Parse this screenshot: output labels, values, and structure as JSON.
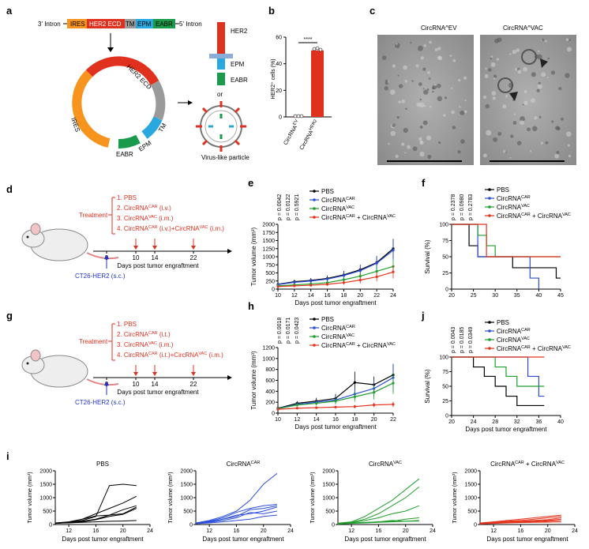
{
  "panels": {
    "a": {
      "label": "a",
      "construct": [
        "3' Intron",
        "IRES",
        "HER2 ECD",
        "TM",
        "EPM",
        "EABR",
        "5' Intron"
      ],
      "ring": [
        "HER2 ECD",
        "IRES",
        "EABR",
        "EPM",
        "TM"
      ],
      "protein": [
        "HER2",
        "EPM",
        "EABR"
      ],
      "or": "or",
      "vlp": "Virus-like particle"
    },
    "b": {
      "label": "b",
      "ylabel": "HER2⁺ cells (%)",
      "sig": "****",
      "yticks": [
        "0",
        "20",
        "40",
        "60"
      ],
      "xcats": [
        "CircRNA^EV",
        "CircRNA^HER2"
      ],
      "values": [
        0.5,
        50
      ]
    },
    "c": {
      "label": "c",
      "img1": "CircRNA^EV",
      "img2": "CircRNA^VAC",
      "scale1": "100 nm",
      "scale2": "100 nm"
    },
    "d": {
      "label": "d",
      "treatment": "Treatment",
      "items": [
        "1. PBS",
        "2. CircRNA^CAR (i.v.)",
        "3. CircRNA^VAC (i.m.)",
        "4. CircRNA^CAR (i.v.)+CircRNA^VAC (i.m.)"
      ],
      "days": [
        "0",
        "10",
        "14",
        "22"
      ],
      "axis": "Days post tumor engraftment",
      "tumor": "CT26-HER2 (s.c.)"
    },
    "g": {
      "label": "g",
      "treatment": "Treatment",
      "items": [
        "1. PBS",
        "2. CircRNA^CAR (i.t.)",
        "3. CircRNA^VAC (i.m.)",
        "4. CircRNA^CAR (i.t.)+CircRNA^VAC (i.m.)"
      ],
      "days": [
        "0",
        "10",
        "14",
        "22"
      ],
      "axis": "Days post tumor engraftment",
      "tumor": "CT26-HER2 (s.c.)"
    },
    "e": {
      "label": "e",
      "pvals": [
        "p = 0.0042",
        "p = 0.0122",
        "p = 0.5921"
      ]
    },
    "f": {
      "label": "f",
      "pvals": [
        "p = 0.2378",
        "p = 0.0980",
        "p = 0.2783"
      ]
    },
    "h": {
      "label": "h",
      "pvals": [
        "p = 0.0018",
        "p = 0.0171",
        "p = 0.0423"
      ]
    },
    "j": {
      "label": "j",
      "pvals": [
        "p = 0.0043",
        "p = 0.0185",
        "p = 0.0349"
      ]
    },
    "i": {
      "label": "i"
    }
  },
  "legend": [
    "PBS",
    "CircRNA^CAR",
    "CircRNA^VAC",
    "CircRNA^CAR + CircRNA^VAC"
  ],
  "colors": {
    "PBS": "#000000",
    "CAR": "#2a4ed8",
    "VAC": "#1f9e2c",
    "COMBO": "#e5331c"
  },
  "chart_data": [
    {
      "id": "b",
      "type": "bar",
      "categories": [
        "CircRNA^EV",
        "CircRNA^HER2"
      ],
      "values": [
        0.5,
        50
      ],
      "ylabel": "HER2⁺ cells (%)",
      "ylim": [
        0,
        60
      ]
    },
    {
      "id": "e",
      "type": "line",
      "xlabel": "Days post tumor engraftment",
      "ylabel": "Tumor volume (mm³)",
      "x": [
        10,
        12,
        14,
        16,
        18,
        20,
        22,
        24
      ],
      "xlim": [
        10,
        24
      ],
      "ylim": [
        0,
        2000
      ],
      "yticks": [
        0,
        250,
        500,
        750,
        1000,
        1250,
        1500,
        1750,
        2000
      ],
      "series": [
        {
          "name": "PBS",
          "values": [
            150,
            230,
            270,
            330,
            440,
            600,
            820,
            1250
          ],
          "err": [
            40,
            60,
            70,
            90,
            120,
            150,
            200,
            300
          ]
        },
        {
          "name": "CircRNA^CAR",
          "values": [
            140,
            210,
            250,
            310,
            420,
            570,
            800,
            1200
          ],
          "err": [
            40,
            60,
            70,
            90,
            120,
            160,
            220,
            320
          ]
        },
        {
          "name": "CircRNA^VAC",
          "values": [
            100,
            130,
            160,
            200,
            290,
            400,
            550,
            700
          ],
          "err": [
            30,
            40,
            50,
            70,
            90,
            120,
            150,
            200
          ]
        },
        {
          "name": "CircRNA^CAR + CircRNA^VAC",
          "values": [
            80,
            100,
            120,
            150,
            200,
            280,
            380,
            530
          ],
          "err": [
            20,
            30,
            40,
            50,
            70,
            100,
            140,
            200
          ]
        }
      ]
    },
    {
      "id": "f",
      "type": "line",
      "xlabel": "",
      "ylabel": "Survival (%)",
      "xlim": [
        20,
        45
      ],
      "ylim": [
        0,
        100
      ],
      "xticks": [
        20,
        25,
        30,
        35,
        40,
        45
      ],
      "yticks": [
        0,
        25,
        50,
        75,
        100
      ],
      "series": [
        {
          "name": "PBS",
          "steps": [
            [
              20,
              100
            ],
            [
              24,
              100
            ],
            [
              24,
              67
            ],
            [
              26,
              67
            ],
            [
              26,
              50
            ],
            [
              34,
              50
            ],
            [
              34,
              33
            ],
            [
              44,
              33
            ],
            [
              44,
              17
            ],
            [
              45,
              17
            ]
          ]
        },
        {
          "name": "CircRNA^CAR",
          "steps": [
            [
              20,
              100
            ],
            [
              26,
              100
            ],
            [
              26,
              50
            ],
            [
              38,
              50
            ],
            [
              38,
              17
            ],
            [
              40,
              17
            ],
            [
              40,
              0
            ]
          ]
        },
        {
          "name": "CircRNA^VAC",
          "steps": [
            [
              20,
              100
            ],
            [
              26,
              100
            ],
            [
              26,
              83
            ],
            [
              28,
              83
            ],
            [
              28,
              67
            ],
            [
              30,
              67
            ],
            [
              30,
              50
            ],
            [
              45,
              50
            ]
          ]
        },
        {
          "name": "CircRNA^CAR + CircRNA^VAC",
          "steps": [
            [
              20,
              100
            ],
            [
              28,
              100
            ],
            [
              28,
              50
            ],
            [
              45,
              50
            ]
          ]
        }
      ]
    },
    {
      "id": "h",
      "type": "line",
      "xlabel": "Days post tumor engraftment",
      "ylabel": "Tumor volume (mm³)",
      "x": [
        10,
        12,
        14,
        16,
        18,
        20,
        22
      ],
      "xlim": [
        10,
        22
      ],
      "ylim": [
        0,
        1200
      ],
      "yticks": [
        0,
        200,
        400,
        600,
        800,
        1000,
        1200
      ],
      "series": [
        {
          "name": "PBS",
          "values": [
            90,
            180,
            220,
            270,
            560,
            520,
            700
          ],
          "err": [
            20,
            40,
            60,
            80,
            200,
            150,
            200
          ]
        },
        {
          "name": "CircRNA^CAR",
          "values": [
            85,
            160,
            200,
            240,
            350,
            450,
            650
          ],
          "err": [
            20,
            30,
            50,
            70,
            100,
            150,
            250
          ]
        },
        {
          "name": "CircRNA^VAC",
          "values": [
            80,
            150,
            180,
            220,
            300,
            380,
            550
          ],
          "err": [
            20,
            30,
            40,
            60,
            90,
            130,
            200
          ]
        },
        {
          "name": "CircRNA^CAR + CircRNA^VAC",
          "values": [
            70,
            90,
            100,
            110,
            120,
            150,
            160
          ],
          "err": [
            10,
            15,
            20,
            25,
            30,
            40,
            50
          ]
        }
      ]
    },
    {
      "id": "j",
      "type": "line",
      "xlabel": "Days post tumor engraftment",
      "ylabel": "Survival (%)",
      "xlim": [
        20,
        40
      ],
      "ylim": [
        0,
        100
      ],
      "xticks": [
        20,
        24,
        28,
        32,
        36,
        40
      ],
      "yticks": [
        0,
        25,
        50,
        75,
        100
      ],
      "series": [
        {
          "name": "PBS",
          "steps": [
            [
              20,
              100
            ],
            [
              24,
              100
            ],
            [
              24,
              83
            ],
            [
              26,
              83
            ],
            [
              26,
              67
            ],
            [
              28,
              67
            ],
            [
              28,
              50
            ],
            [
              30,
              50
            ],
            [
              30,
              33
            ],
            [
              32,
              33
            ],
            [
              32,
              17
            ],
            [
              37,
              17
            ]
          ]
        },
        {
          "name": "CircRNA^CAR",
          "steps": [
            [
              20,
              100
            ],
            [
              34,
              100
            ],
            [
              34,
              67
            ],
            [
              36,
              67
            ],
            [
              36,
              33
            ],
            [
              37,
              33
            ]
          ]
        },
        {
          "name": "CircRNA^VAC",
          "steps": [
            [
              20,
              100
            ],
            [
              28,
              100
            ],
            [
              28,
              83
            ],
            [
              30,
              83
            ],
            [
              30,
              67
            ],
            [
              32,
              67
            ],
            [
              32,
              50
            ],
            [
              37,
              50
            ]
          ]
        },
        {
          "name": "CircRNA^CAR + CircRNA^VAC",
          "steps": [
            [
              20,
              100
            ],
            [
              37,
              100
            ]
          ]
        }
      ]
    },
    {
      "id": "i",
      "type": "line",
      "xlabel": "Days post tumor engraftment",
      "ylabel": "Tumor volume (mm³)",
      "xticks": [
        12,
        16,
        20,
        24
      ],
      "yticks": [
        0,
        500,
        1000,
        1500,
        2000
      ],
      "xlim": [
        10,
        24
      ],
      "ylim": [
        0,
        2000
      ],
      "panels": [
        {
          "title": "PBS",
          "x": [
            10,
            12,
            14,
            16,
            18,
            20,
            22
          ],
          "lines": [
            [
              50,
              80,
              150,
              300,
              1450,
              1500,
              1450
            ],
            [
              60,
              100,
              200,
              400,
              600,
              800,
              1050
            ],
            [
              50,
              90,
              200,
              320,
              350,
              550,
              700
            ],
            [
              40,
              70,
              120,
              200,
              350,
              400,
              650
            ],
            [
              40,
              80,
              100,
              180,
              300,
              380,
              600
            ],
            [
              50,
              60,
              80,
              100,
              120,
              130,
              150
            ]
          ]
        },
        {
          "title": "CircRNA^CAR",
          "x": [
            10,
            12,
            14,
            16,
            18,
            20,
            22
          ],
          "lines": [
            [
              60,
              150,
              300,
              500,
              900,
              1500,
              1900
            ],
            [
              50,
              120,
              250,
              450,
              600,
              700,
              750
            ],
            [
              40,
              100,
              200,
              300,
              550,
              600,
              700
            ],
            [
              50,
              100,
              200,
              350,
              400,
              500,
              650
            ],
            [
              40,
              80,
              150,
              250,
              450,
              400,
              500
            ],
            [
              30,
              60,
              100,
              150,
              200,
              300,
              350
            ]
          ]
        },
        {
          "title": "CircRNA^VAC",
          "x": [
            10,
            12,
            14,
            16,
            18,
            20,
            22
          ],
          "lines": [
            [
              50,
              100,
              300,
              600,
              900,
              1300,
              1700
            ],
            [
              40,
              80,
              200,
              400,
              700,
              1000,
              1400
            ],
            [
              30,
              70,
              150,
              250,
              400,
              500,
              700
            ],
            [
              40,
              60,
              80,
              100,
              120,
              200,
              250
            ],
            [
              30,
              50,
              70,
              100,
              150,
              120,
              150
            ],
            [
              20,
              40,
              60,
              80,
              100,
              120,
              130
            ]
          ]
        },
        {
          "title": "CircRNA^CAR + CircRNA^VAC",
          "x": [
            10,
            12,
            14,
            16,
            18,
            20,
            22
          ],
          "lines": [
            [
              60,
              100,
              150,
              200,
              250,
              300,
              350
            ],
            [
              50,
              80,
              120,
              150,
              200,
              250,
              300
            ],
            [
              40,
              70,
              100,
              120,
              150,
              180,
              250
            ],
            [
              30,
              60,
              80,
              100,
              130,
              150,
              200
            ],
            [
              30,
              50,
              70,
              90,
              100,
              120,
              150
            ],
            [
              20,
              40,
              60,
              70,
              80,
              90,
              100
            ]
          ]
        }
      ]
    }
  ]
}
